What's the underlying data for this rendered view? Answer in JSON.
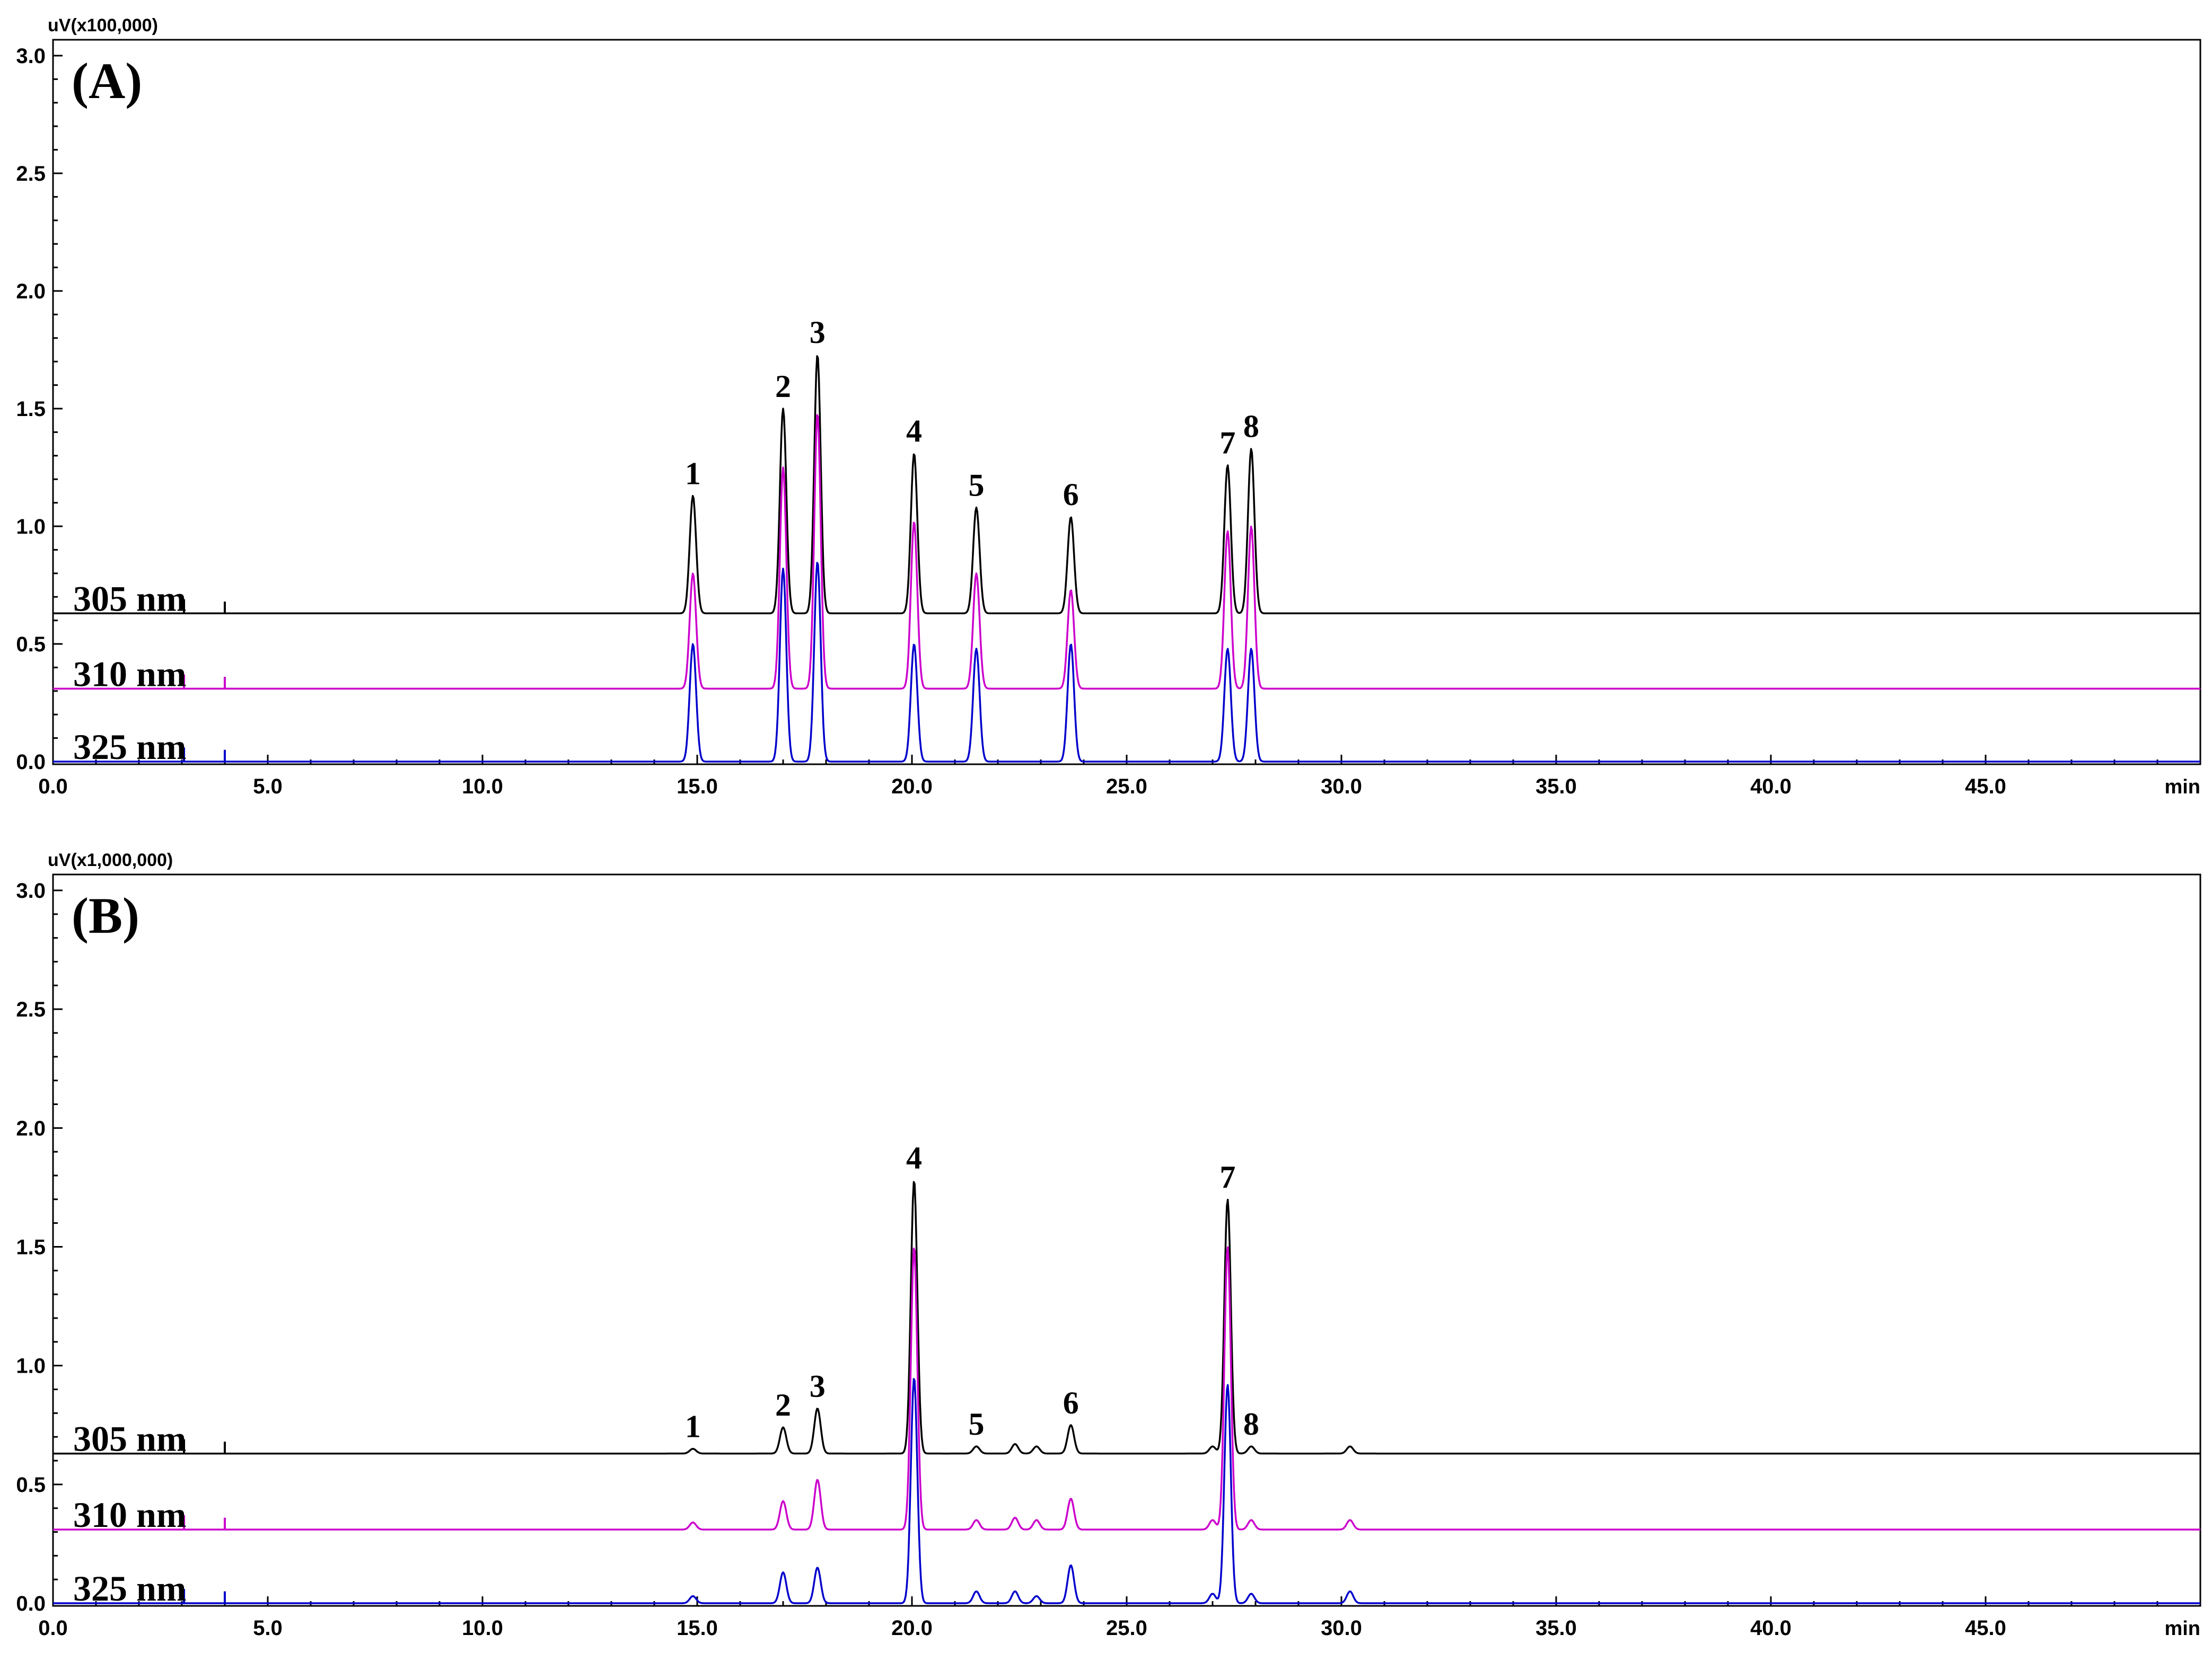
{
  "chart_data": [
    {
      "type": "line",
      "panel_label": "(A)",
      "y_unit_label": "uV(x100,000)",
      "xlabel": "min",
      "xlim": [
        0,
        50
      ],
      "ylim": [
        0,
        3.0
      ],
      "x_ticks": [
        "0.0",
        "5.0",
        "10.0",
        "15.0",
        "20.0",
        "25.0",
        "30.0",
        "35.0",
        "40.0",
        "45.0"
      ],
      "y_ticks": [
        "0.0",
        "0.5",
        "1.0",
        "1.5",
        "2.0",
        "2.5",
        "3.0"
      ],
      "grid": false,
      "series": [
        {
          "name": "305 nm",
          "color": "#000000",
          "baseline": 0.63,
          "peaks": [
            {
              "label": "1",
              "x": 14.9,
              "y": 1.13
            },
            {
              "label": "2",
              "x": 17.0,
              "y": 1.5
            },
            {
              "label": "3",
              "x": 17.8,
              "y": 1.73
            },
            {
              "label": "4",
              "x": 20.05,
              "y": 1.31
            },
            {
              "label": "5",
              "x": 21.5,
              "y": 1.08
            },
            {
              "label": "6",
              "x": 23.7,
              "y": 1.04
            },
            {
              "label": "7",
              "x": 27.35,
              "y": 1.26
            },
            {
              "label": "8",
              "x": 27.9,
              "y": 1.33
            }
          ]
        },
        {
          "name": "310 nm",
          "color": "#cc00cc",
          "baseline": 0.31,
          "peaks": [
            {
              "label": "1",
              "x": 14.9,
              "y": 0.8
            },
            {
              "label": "2",
              "x": 17.0,
              "y": 1.25
            },
            {
              "label": "3",
              "x": 17.8,
              "y": 1.48
            },
            {
              "label": "4",
              "x": 20.05,
              "y": 1.02
            },
            {
              "label": "5",
              "x": 21.5,
              "y": 0.8
            },
            {
              "label": "6",
              "x": 23.7,
              "y": 0.73
            },
            {
              "label": "7",
              "x": 27.35,
              "y": 0.98
            },
            {
              "label": "8",
              "x": 27.9,
              "y": 1.0
            }
          ]
        },
        {
          "name": "325 nm",
          "color": "#0000cc",
          "baseline": 0.0,
          "peaks": [
            {
              "label": "1",
              "x": 14.9,
              "y": 0.5
            },
            {
              "label": "2",
              "x": 17.0,
              "y": 0.82
            },
            {
              "label": "3",
              "x": 17.8,
              "y": 0.85
            },
            {
              "label": "4",
              "x": 20.05,
              "y": 0.5
            },
            {
              "label": "5",
              "x": 21.5,
              "y": 0.48
            },
            {
              "label": "6",
              "x": 23.7,
              "y": 0.5
            },
            {
              "label": "7",
              "x": 27.35,
              "y": 0.48
            },
            {
              "label": "8",
              "x": 27.9,
              "y": 0.48
            }
          ]
        }
      ],
      "peak_labels": [
        {
          "text": "1",
          "x": 14.9,
          "y": 1.13
        },
        {
          "text": "2",
          "x": 17.0,
          "y": 1.5
        },
        {
          "text": "3",
          "x": 17.8,
          "y": 1.73
        },
        {
          "text": "4",
          "x": 20.05,
          "y": 1.31
        },
        {
          "text": "5",
          "x": 21.5,
          "y": 1.08
        },
        {
          "text": "6",
          "x": 23.7,
          "y": 1.04
        },
        {
          "text": "7",
          "x": 27.35,
          "y": 1.26
        },
        {
          "text": "8",
          "x": 27.9,
          "y": 1.33
        }
      ]
    },
    {
      "type": "line",
      "panel_label": "(B)",
      "y_unit_label": "uV(x1,000,000)",
      "xlabel": "min",
      "xlim": [
        0,
        50
      ],
      "ylim": [
        0,
        3.0
      ],
      "x_ticks": [
        "0.0",
        "5.0",
        "10.0",
        "15.0",
        "20.0",
        "25.0",
        "30.0",
        "35.0",
        "40.0",
        "45.0"
      ],
      "y_ticks": [
        "0.0",
        "0.5",
        "1.0",
        "1.5",
        "2.0",
        "2.5",
        "3.0"
      ],
      "grid": false,
      "series": [
        {
          "name": "305 nm",
          "color": "#000000",
          "baseline": 0.63,
          "peaks": [
            {
              "label": "1",
              "x": 14.9,
              "y": 0.65
            },
            {
              "label": "2",
              "x": 17.0,
              "y": 0.74
            },
            {
              "label": "3",
              "x": 17.8,
              "y": 0.82
            },
            {
              "label": "4",
              "x": 20.05,
              "y": 1.78
            },
            {
              "label": "5",
              "x": 21.5,
              "y": 0.66
            },
            {
              "label": "",
              "x": 22.4,
              "y": 0.67
            },
            {
              "label": "",
              "x": 22.9,
              "y": 0.66
            },
            {
              "label": "6",
              "x": 23.7,
              "y": 0.75
            },
            {
              "label": "",
              "x": 27.0,
              "y": 0.66
            },
            {
              "label": "7",
              "x": 27.35,
              "y": 1.7
            },
            {
              "label": "8",
              "x": 27.9,
              "y": 0.66
            },
            {
              "label": "",
              "x": 30.2,
              "y": 0.66
            }
          ]
        },
        {
          "name": "310 nm",
          "color": "#cc00cc",
          "baseline": 0.31,
          "peaks": [
            {
              "label": "1",
              "x": 14.9,
              "y": 0.34
            },
            {
              "label": "2",
              "x": 17.0,
              "y": 0.43
            },
            {
              "label": "3",
              "x": 17.8,
              "y": 0.52
            },
            {
              "label": "4",
              "x": 20.05,
              "y": 1.5
            },
            {
              "label": "5",
              "x": 21.5,
              "y": 0.35
            },
            {
              "label": "",
              "x": 22.4,
              "y": 0.36
            },
            {
              "label": "",
              "x": 22.9,
              "y": 0.35
            },
            {
              "label": "6",
              "x": 23.7,
              "y": 0.44
            },
            {
              "label": "",
              "x": 27.0,
              "y": 0.35
            },
            {
              "label": "7",
              "x": 27.35,
              "y": 1.5
            },
            {
              "label": "8",
              "x": 27.9,
              "y": 0.35
            },
            {
              "label": "",
              "x": 30.2,
              "y": 0.35
            }
          ]
        },
        {
          "name": "325 nm",
          "color": "#0000cc",
          "baseline": 0.0,
          "peaks": [
            {
              "label": "1",
              "x": 14.9,
              "y": 0.03
            },
            {
              "label": "2",
              "x": 17.0,
              "y": 0.13
            },
            {
              "label": "3",
              "x": 17.8,
              "y": 0.15
            },
            {
              "label": "4",
              "x": 20.05,
              "y": 0.95
            },
            {
              "label": "5",
              "x": 21.5,
              "y": 0.05
            },
            {
              "label": "",
              "x": 22.4,
              "y": 0.05
            },
            {
              "label": "",
              "x": 22.9,
              "y": 0.03
            },
            {
              "label": "6",
              "x": 23.7,
              "y": 0.16
            },
            {
              "label": "",
              "x": 27.0,
              "y": 0.04
            },
            {
              "label": "7",
              "x": 27.35,
              "y": 0.92
            },
            {
              "label": "8",
              "x": 27.9,
              "y": 0.04
            },
            {
              "label": "",
              "x": 30.2,
              "y": 0.05
            }
          ]
        }
      ],
      "peak_labels": [
        {
          "text": "1",
          "x": 14.9,
          "y": 0.65
        },
        {
          "text": "2",
          "x": 17.0,
          "y": 0.74
        },
        {
          "text": "3",
          "x": 17.8,
          "y": 0.82
        },
        {
          "text": "4",
          "x": 20.05,
          "y": 1.78
        },
        {
          "text": "5",
          "x": 21.5,
          "y": 0.66
        },
        {
          "text": "6",
          "x": 23.7,
          "y": 0.75
        },
        {
          "text": "7",
          "x": 27.35,
          "y": 1.7
        },
        {
          "text": "8",
          "x": 27.9,
          "y": 0.66
        }
      ]
    }
  ]
}
